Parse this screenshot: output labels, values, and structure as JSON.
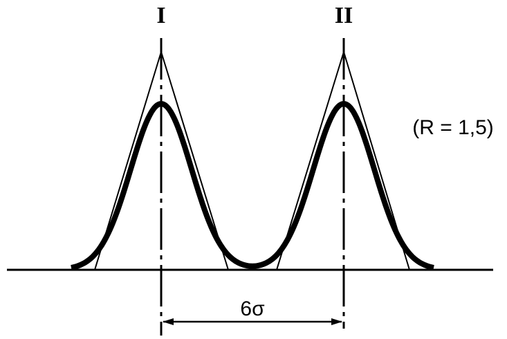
{
  "peak_labels": [
    "I",
    "II"
  ],
  "ratio_label": "(R = 1,5)",
  "distance_label": "6σ"
}
